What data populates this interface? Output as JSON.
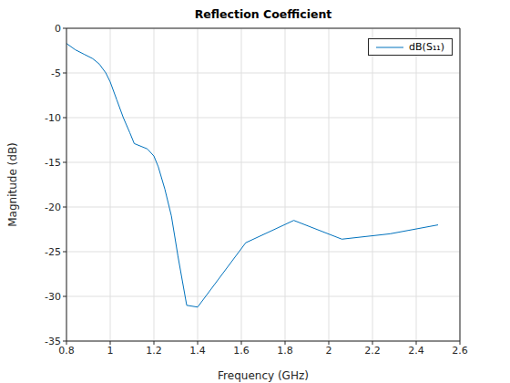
{
  "chart_data": {
    "type": "line",
    "title": "Reflection Coefficient",
    "x_label": "Frequency (GHz)",
    "y_label": "Magnitude (dB)",
    "x": [
      0.8,
      0.84,
      0.88,
      0.92,
      0.95,
      0.98,
      1.0,
      1.03,
      1.06,
      1.09,
      1.11,
      1.17,
      1.2,
      1.22,
      1.25,
      1.28,
      1.31,
      1.35,
      1.4,
      1.62,
      1.84,
      2.06,
      2.28,
      2.5
    ],
    "series": [
      {
        "name": "dB(S₁₁)",
        "color": "#0072bd",
        "values": [
          -1.7,
          -2.4,
          -2.9,
          -3.4,
          -4.0,
          -5.0,
          -6.0,
          -8.0,
          -10.0,
          -11.7,
          -12.9,
          -13.5,
          -14.3,
          -15.5,
          -18.0,
          -21.0,
          -25.5,
          -31.0,
          -31.2,
          -24.0,
          -21.5,
          -23.6,
          -23.0,
          -22.0
        ]
      }
    ],
    "xlim": [
      0.8,
      2.6
    ],
    "xticks": [
      0.8,
      1,
      1.2,
      1.4,
      1.6,
      1.8,
      2,
      2.2,
      2.4,
      2.6
    ],
    "ylim": [
      -35,
      0
    ],
    "yticks": [
      -35,
      -30,
      -25,
      -20,
      -15,
      -10,
      -5,
      0
    ],
    "grid": true,
    "legend": "northeast"
  }
}
